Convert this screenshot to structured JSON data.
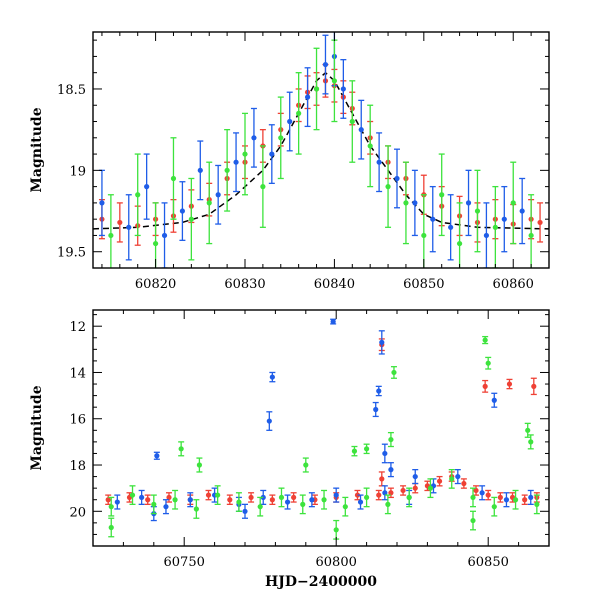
{
  "chart_data": [
    {
      "type": "scatter",
      "panel": "top",
      "xlabel": "",
      "ylabel": "Magnitude",
      "xlim": [
        60813,
        60864
      ],
      "ylim": [
        19.6,
        18.15
      ],
      "y_inverted": true,
      "xticks": [
        60820,
        60830,
        60840,
        60850,
        60860
      ],
      "xtick_labels": [
        "60820",
        "60830",
        "60840",
        "60850",
        "60860"
      ],
      "yticks": [
        18.5,
        19,
        19.5
      ],
      "ytick_labels": [
        "18.5",
        "19",
        "19.5"
      ],
      "grid": false,
      "error_bars": true,
      "model_curve": {
        "color": "#000000",
        "style": "dashed",
        "x": [
          60813,
          60818,
          60823,
          60826,
          60829,
          60832,
          60834,
          60836,
          60838,
          60839,
          60840,
          60842,
          60844,
          60846,
          60848,
          60850,
          60852,
          60856,
          60864
        ],
        "y": [
          19.36,
          19.35,
          19.32,
          19.27,
          19.15,
          19.0,
          18.85,
          18.65,
          18.45,
          18.4,
          18.45,
          18.65,
          18.85,
          19.0,
          19.15,
          19.27,
          19.32,
          19.35,
          19.36
        ]
      },
      "series": [
        {
          "color": "#ef4135",
          "x": [
            60814,
            60816,
            60818,
            60820,
            60822,
            60824,
            60826,
            60828,
            60830,
            60832,
            60834,
            60836,
            60837,
            60838,
            60839,
            60840,
            60841,
            60842,
            60844,
            60846,
            60848,
            60850,
            60852,
            60854,
            60856,
            60858,
            60860,
            60862,
            60863
          ],
          "y": [
            19.3,
            19.32,
            19.34,
            19.3,
            19.28,
            19.22,
            19.18,
            19.05,
            18.95,
            18.85,
            18.75,
            18.6,
            18.52,
            18.5,
            18.45,
            18.48,
            18.55,
            18.62,
            18.8,
            18.95,
            19.05,
            19.15,
            19.22,
            19.28,
            19.32,
            19.3,
            19.33,
            19.3,
            19.32
          ],
          "yerr": [
            0.12,
            0.12,
            0.12,
            0.1,
            0.1,
            0.1,
            0.1,
            0.1,
            0.1,
            0.1,
            0.1,
            0.1,
            0.1,
            0.1,
            0.1,
            0.1,
            0.1,
            0.1,
            0.1,
            0.1,
            0.1,
            0.12,
            0.12,
            0.12,
            0.12,
            0.12,
            0.12,
            0.12,
            0.12
          ]
        },
        {
          "color": "#1f5de8",
          "x": [
            60814,
            60817,
            60819,
            60821,
            60823,
            60825,
            60827,
            60829,
            60831,
            60833,
            60835,
            60837,
            60839,
            60840,
            60841,
            60843,
            60845,
            60847,
            60849,
            60851,
            60853,
            60855,
            60857,
            60859,
            60861
          ],
          "y": [
            19.2,
            19.35,
            19.1,
            19.4,
            19.25,
            19.0,
            19.15,
            18.95,
            18.8,
            18.9,
            18.7,
            18.55,
            18.35,
            18.3,
            18.5,
            18.75,
            18.95,
            19.05,
            19.2,
            19.3,
            19.35,
            19.2,
            19.4,
            19.3,
            19.25
          ],
          "yerr": [
            0.2,
            0.2,
            0.2,
            0.2,
            0.18,
            0.18,
            0.18,
            0.18,
            0.18,
            0.18,
            0.18,
            0.18,
            0.18,
            0.18,
            0.18,
            0.18,
            0.18,
            0.18,
            0.2,
            0.2,
            0.2,
            0.2,
            0.2,
            0.2,
            0.2
          ]
        },
        {
          "color": "#3de33d",
          "x": [
            60815,
            60818,
            60820,
            60822,
            60824,
            60826,
            60828,
            60830,
            60832,
            60834,
            60836,
            60838,
            60840,
            60842,
            60844,
            60846,
            60848,
            60850,
            60852,
            60854,
            60856,
            60858,
            60860,
            60862
          ],
          "y": [
            19.4,
            19.15,
            19.45,
            19.05,
            19.3,
            19.2,
            19.0,
            18.9,
            19.1,
            18.8,
            18.65,
            18.5,
            18.45,
            18.7,
            18.85,
            19.1,
            19.2,
            19.4,
            19.15,
            19.45,
            19.25,
            19.35,
            19.2,
            19.4
          ],
          "yerr": [
            0.25,
            0.25,
            0.25,
            0.25,
            0.25,
            0.25,
            0.25,
            0.25,
            0.25,
            0.25,
            0.25,
            0.25,
            0.25,
            0.25,
            0.25,
            0.25,
            0.25,
            0.25,
            0.25,
            0.25,
            0.25,
            0.25,
            0.25,
            0.25
          ]
        }
      ]
    },
    {
      "type": "scatter",
      "panel": "bottom",
      "xlabel": "HJD−2400000",
      "ylabel": "Magnitude",
      "xlim": [
        60720,
        60870
      ],
      "ylim": [
        21.5,
        11.3
      ],
      "y_inverted": true,
      "xticks": [
        60750,
        60800,
        60850
      ],
      "xtick_labels": [
        "60750",
        "60800",
        "60850"
      ],
      "yticks": [
        12,
        14,
        16,
        18,
        20
      ],
      "ytick_labels": [
        "12",
        "14",
        "16",
        "18",
        "20"
      ],
      "grid": false,
      "error_bars": true,
      "series": [
        {
          "color": "#ef4135",
          "x": [
            60725,
            60732,
            60738,
            60745,
            60752,
            60758,
            60765,
            60772,
            60779,
            60786,
            60793,
            60800,
            60807,
            60814,
            60818,
            60822,
            60826,
            60830,
            60834,
            60838,
            60842,
            60846,
            60850,
            60854,
            60858,
            60862,
            60866,
            60815,
            60849,
            60857,
            60865,
            60815
          ],
          "y": [
            19.5,
            19.4,
            19.5,
            19.4,
            19.5,
            19.3,
            19.5,
            19.4,
            19.5,
            19.4,
            19.5,
            19.4,
            19.3,
            19.3,
            19.2,
            19.1,
            19.0,
            18.9,
            18.7,
            18.5,
            18.8,
            19.1,
            19.3,
            19.4,
            19.4,
            19.5,
            19.4,
            12.8,
            14.6,
            14.5,
            14.6,
            18.6
          ],
          "yerr": [
            0.2,
            0.2,
            0.2,
            0.2,
            0.2,
            0.2,
            0.2,
            0.2,
            0.2,
            0.2,
            0.2,
            0.2,
            0.2,
            0.2,
            0.2,
            0.2,
            0.2,
            0.2,
            0.2,
            0.2,
            0.2,
            0.2,
            0.2,
            0.2,
            0.2,
            0.2,
            0.2,
            0.25,
            0.25,
            0.2,
            0.35,
            0.3
          ]
        },
        {
          "color": "#1f5de8",
          "x": [
            60728,
            60736,
            60744,
            60752,
            60760,
            60768,
            60776,
            60784,
            60792,
            60800,
            60808,
            60816,
            60824,
            60832,
            60840,
            60848,
            60856,
            60864,
            60741,
            60778,
            60779,
            60799,
            60813,
            60814,
            60815,
            60816,
            60818,
            60826,
            60852,
            60740,
            60770
          ],
          "y": [
            19.6,
            19.4,
            19.8,
            19.5,
            19.3,
            19.7,
            19.4,
            19.6,
            19.5,
            19.3,
            19.6,
            19.2,
            19.4,
            18.9,
            18.5,
            19.2,
            19.5,
            19.4,
            17.6,
            16.1,
            14.2,
            11.8,
            15.6,
            14.8,
            12.7,
            17.5,
            18.2,
            18.5,
            15.2,
            20.1,
            20.0
          ],
          "yerr": [
            0.3,
            0.3,
            0.3,
            0.3,
            0.3,
            0.3,
            0.3,
            0.3,
            0.3,
            0.3,
            0.3,
            0.3,
            0.3,
            0.3,
            0.3,
            0.3,
            0.3,
            0.3,
            0.15,
            0.4,
            0.2,
            0.1,
            0.3,
            0.2,
            0.5,
            0.4,
            0.3,
            0.3,
            0.3,
            0.3,
            0.3
          ]
        },
        {
          "color": "#3de33d",
          "x": [
            60726,
            60733,
            60740,
            60747,
            60754,
            60761,
            60768,
            60775,
            60782,
            60789,
            60796,
            60803,
            60810,
            60817,
            60824,
            60831,
            60838,
            60845,
            60852,
            60859,
            60866,
            60726,
            60749,
            60755,
            60790,
            60806,
            60810,
            60818,
            60819,
            60849,
            60850,
            60863,
            60864,
            60800,
            60845
          ],
          "y": [
            19.8,
            19.3,
            19.7,
            19.5,
            19.9,
            19.3,
            19.6,
            19.8,
            19.4,
            19.7,
            19.5,
            19.8,
            19.4,
            19.7,
            19.4,
            19.0,
            18.6,
            19.4,
            19.8,
            19.5,
            19.7,
            20.7,
            17.3,
            18.0,
            18.0,
            17.4,
            17.3,
            16.9,
            14.0,
            12.6,
            13.6,
            16.5,
            17.0,
            20.8,
            20.4
          ],
          "yerr": [
            0.4,
            0.4,
            0.4,
            0.4,
            0.4,
            0.4,
            0.4,
            0.4,
            0.4,
            0.4,
            0.4,
            0.4,
            0.4,
            0.4,
            0.4,
            0.4,
            0.4,
            0.4,
            0.4,
            0.4,
            0.4,
            0.4,
            0.3,
            0.3,
            0.3,
            0.2,
            0.2,
            0.3,
            0.25,
            0.15,
            0.25,
            0.3,
            0.3,
            0.4,
            0.4
          ]
        }
      ]
    }
  ]
}
